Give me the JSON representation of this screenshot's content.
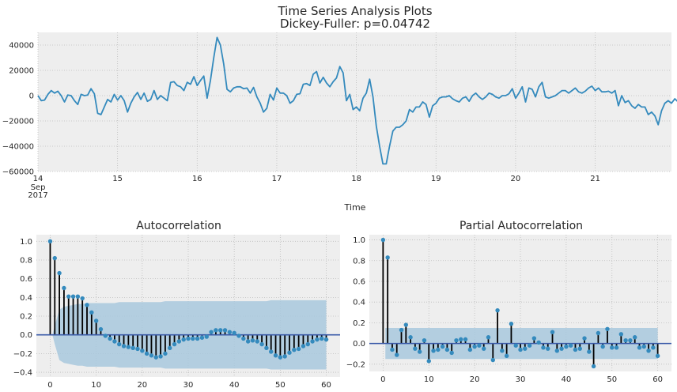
{
  "colors": {
    "background": "#ffffff",
    "axes_face": "#eeeeee",
    "grid": "#bcbcbc",
    "line": "#348abd",
    "stem": "#000000",
    "zero_line": "#3a5aa8",
    "confidence_band": "#a8c8dd",
    "text": "#262626"
  },
  "chart_data": [
    {
      "type": "line",
      "title": "Time Series Analysis Plots",
      "subtitle": "Dickey-Fuller: p=0.04742",
      "xlabel": "Time",
      "ylabel": "",
      "grid": true,
      "x_start": "2017-09-14 00:00",
      "x_step_hours": 1,
      "xlim_days": [
        0,
        7.958
      ],
      "ylim": [
        -60000,
        50000
      ],
      "x_ticks": [
        {
          "x": 0,
          "label": "14",
          "sub": [
            "Sep",
            "2017"
          ]
        },
        {
          "x": 1,
          "label": "15"
        },
        {
          "x": 2,
          "label": "16"
        },
        {
          "x": 3,
          "label": "17"
        },
        {
          "x": 4,
          "label": "18"
        },
        {
          "x": 5,
          "label": "19"
        },
        {
          "x": 6,
          "label": "20"
        },
        {
          "x": 7,
          "label": "21"
        }
      ],
      "y_ticks": [
        {
          "y": 40000,
          "label": "40000"
        },
        {
          "y": 20000,
          "label": "20000"
        },
        {
          "y": 0,
          "label": "0"
        },
        {
          "y": -20000,
          "label": "−20000"
        },
        {
          "y": -40000,
          "label": "−40000"
        },
        {
          "y": -60000,
          "label": "−60000"
        }
      ],
      "values": [
        0,
        -4000,
        -3500,
        1000,
        4000,
        2000,
        3500,
        0,
        -5000,
        500,
        0,
        -4000,
        -7000,
        1000,
        0,
        500,
        5500,
        1500,
        -14000,
        -15000,
        -9000,
        -3000,
        -5000,
        1000,
        -3500,
        0,
        -4000,
        -13000,
        -6000,
        -1000,
        2500,
        -3000,
        2000,
        -4500,
        -3000,
        4000,
        -3000,
        0,
        -2000,
        -4000,
        10500,
        11000,
        8000,
        7000,
        4000,
        10500,
        9000,
        15000,
        8000,
        12000,
        15500,
        -2000,
        12000,
        30000,
        46000,
        40000,
        25000,
        5000,
        3000,
        6000,
        7000,
        7000,
        5500,
        6000,
        2000,
        6500,
        -1000,
        -6000,
        -13000,
        -10000,
        1000,
        -3500,
        6000,
        2000,
        2000,
        0,
        -6000,
        -4000,
        1000,
        1500,
        9000,
        9500,
        8000,
        17000,
        19000,
        10000,
        14500,
        10000,
        7000,
        11000,
        14000,
        23000,
        18000,
        -4000,
        1000,
        -11000,
        -9000,
        -12000,
        -2000,
        2000,
        13000,
        -1000,
        -24000,
        -40000,
        -54000,
        -54000,
        -40000,
        -28000,
        -25000,
        -25000,
        -23000,
        -20000,
        -11000,
        -13000,
        -9000,
        -9000,
        -5000,
        -7000,
        -17000,
        -8000,
        -6000,
        -2000,
        -1000,
        -1000,
        0,
        -2500,
        -4000,
        -5000,
        -2000,
        -1000,
        -4500,
        0,
        2000,
        -1000,
        -3000,
        -1000,
        2000,
        1000,
        -1000,
        -2000,
        0,
        0,
        1500,
        5500,
        -2000,
        2000,
        7000,
        -5000,
        6000,
        5000,
        -1000,
        7000,
        10500,
        -1000,
        -2000,
        -1000,
        0,
        2000,
        4000,
        4000,
        2000,
        4000,
        6000,
        3000,
        2000,
        3500,
        6000,
        7500,
        4000,
        6000,
        3000,
        3000,
        3500,
        2000,
        4000,
        -8000,
        0,
        -5500,
        -4000,
        -8000,
        -10000,
        -7000,
        -9000,
        -9000,
        -15000,
        -13000,
        -16000,
        -23000,
        -12000,
        -6000,
        -4000,
        -6000,
        -2500,
        -5000,
        -4500,
        -3000,
        -2000,
        3000,
        0,
        -3000,
        -4000,
        -1000,
        -5000,
        -7000,
        -5500,
        -5500,
        -3000,
        8500,
        1000,
        1000,
        3000,
        6000,
        12000,
        12500,
        10000,
        14000,
        9000,
        11500,
        8000,
        6500,
        7000,
        5000,
        4000,
        7500,
        11000,
        13500,
        8000,
        6000,
        5000,
        3500,
        2000,
        0,
        -3000,
        -5000,
        1000,
        3000,
        1500,
        0,
        4000,
        6000,
        7000,
        6000,
        4000,
        2000
      ]
    },
    {
      "type": "bar",
      "style": "stem",
      "title": "Autocorrelation",
      "xlabel": "",
      "ylabel": "",
      "grid": true,
      "xlim": [
        -3,
        63
      ],
      "ylim": [
        -0.45,
        1.07
      ],
      "x_ticks": [
        0,
        10,
        20,
        30,
        40,
        50,
        60
      ],
      "y_ticks": [
        {
          "y": 1.0,
          "label": "1.0"
        },
        {
          "y": 0.8,
          "label": "0.8"
        },
        {
          "y": 0.6,
          "label": "0.6"
        },
        {
          "y": 0.4,
          "label": "0.4"
        },
        {
          "y": 0.2,
          "label": "0.2"
        },
        {
          "y": 0.0,
          "label": "0.0"
        },
        {
          "y": -0.2,
          "label": "−0.2"
        },
        {
          "y": -0.4,
          "label": "−0.4"
        }
      ],
      "values": [
        1.0,
        0.82,
        0.66,
        0.5,
        0.41,
        0.41,
        0.41,
        0.39,
        0.32,
        0.24,
        0.15,
        0.06,
        -0.01,
        -0.04,
        -0.07,
        -0.1,
        -0.12,
        -0.13,
        -0.14,
        -0.15,
        -0.17,
        -0.2,
        -0.22,
        -0.24,
        -0.23,
        -0.2,
        -0.14,
        -0.1,
        -0.07,
        -0.05,
        -0.04,
        -0.04,
        -0.04,
        -0.03,
        -0.02,
        0.03,
        0.05,
        0.05,
        0.05,
        0.03,
        0.02,
        -0.01,
        -0.04,
        -0.07,
        -0.06,
        -0.07,
        -0.1,
        -0.14,
        -0.18,
        -0.22,
        -0.24,
        -0.23,
        -0.19,
        -0.16,
        -0.15,
        -0.12,
        -0.1,
        -0.07,
        -0.05,
        -0.04,
        -0.05
      ],
      "confidence_upper": [
        0,
        0.1,
        0.27,
        0.3,
        0.31,
        0.32,
        0.33,
        0.33,
        0.34,
        0.34,
        0.34,
        0.34,
        0.34,
        0.34,
        0.34,
        0.35,
        0.35,
        0.35,
        0.35,
        0.35,
        0.35,
        0.35,
        0.35,
        0.35,
        0.35,
        0.36,
        0.36,
        0.36,
        0.36,
        0.36,
        0.36,
        0.36,
        0.36,
        0.36,
        0.36,
        0.36,
        0.36,
        0.36,
        0.36,
        0.36,
        0.36,
        0.36,
        0.36,
        0.36,
        0.36,
        0.36,
        0.36,
        0.36,
        0.37,
        0.37,
        0.37,
        0.37,
        0.37,
        0.37,
        0.37,
        0.37,
        0.37,
        0.37,
        0.37,
        0.37,
        0.37
      ]
    },
    {
      "type": "bar",
      "style": "stem",
      "title": "Partial Autocorrelation",
      "xlabel": "",
      "ylabel": "",
      "grid": true,
      "xlim": [
        -3,
        63
      ],
      "ylim": [
        -0.27,
        1.05
      ],
      "x_ticks": [
        0,
        10,
        20,
        30,
        40,
        50,
        60
      ],
      "y_ticks": [
        {
          "y": 1.0,
          "label": "1.0"
        },
        {
          "y": 0.8,
          "label": "0.8"
        },
        {
          "y": 0.6,
          "label": "0.6"
        },
        {
          "y": 0.4,
          "label": "0.4"
        },
        {
          "y": 0.2,
          "label": "0.2"
        },
        {
          "y": 0.0,
          "label": "0.0"
        },
        {
          "y": -0.2,
          "label": "−0.2"
        }
      ],
      "values": [
        1.0,
        0.83,
        -0.06,
        -0.11,
        0.13,
        0.18,
        0.06,
        -0.05,
        -0.08,
        0.03,
        -0.17,
        -0.07,
        -0.06,
        -0.03,
        -0.06,
        -0.09,
        0.03,
        0.04,
        0.04,
        -0.06,
        -0.03,
        -0.02,
        -0.05,
        0.06,
        -0.16,
        0.32,
        -0.07,
        -0.12,
        0.19,
        -0.02,
        -0.06,
        -0.05,
        -0.02,
        0.05,
        0.01,
        -0.04,
        -0.05,
        0.11,
        -0.07,
        -0.05,
        -0.03,
        -0.02,
        -0.06,
        -0.05,
        0.05,
        -0.08,
        -0.22,
        0.1,
        -0.03,
        0.14,
        -0.04,
        -0.04,
        0.09,
        0.03,
        0.03,
        0.06,
        -0.04,
        -0.03,
        -0.07,
        -0.04,
        -0.12
      ],
      "confidence_upper": 0.15
    }
  ]
}
